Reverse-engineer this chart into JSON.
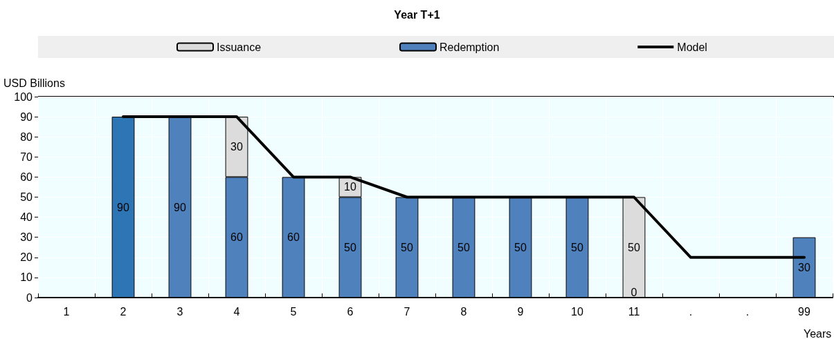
{
  "chart_data": {
    "type": "bar",
    "title": "Year T+1",
    "ylabel": "USD Billions",
    "xlabel": "Years",
    "categories": [
      "1",
      "2",
      "3",
      "4",
      "5",
      "6",
      "7",
      "8",
      "9",
      "10",
      "11",
      ".",
      ".",
      "99"
    ],
    "stacked": true,
    "annotations": [
      {
        "text": "0",
        "x": "11",
        "y": 0
      }
    ],
    "ylim": [
      0,
      100
    ],
    "yticks": [
      0,
      10,
      20,
      30,
      40,
      50,
      60,
      70,
      80,
      90,
      100
    ],
    "grid": true,
    "legend": "top",
    "series": [
      {
        "name": "Issuance",
        "color": "#dcdcdc",
        "values": [
          null,
          null,
          null,
          30,
          null,
          10,
          null,
          null,
          null,
          null,
          50,
          null,
          null,
          null
        ],
        "value_labels": [
          null,
          null,
          null,
          "30",
          null,
          "10",
          null,
          null,
          null,
          null,
          "50",
          null,
          null,
          null
        ]
      },
      {
        "name": "Redemption",
        "color": "#4f81bd",
        "colors": [
          "#4f81bd",
          "#2e75b6",
          "#4f81bd",
          "#4f81bd",
          "#4f81bd",
          "#4f81bd",
          "#4f81bd",
          "#4f81bd",
          "#4f81bd",
          "#4f81bd",
          "#4f81bd",
          "#4f81bd",
          "#4f81bd",
          "#4f81bd"
        ],
        "values": [
          null,
          90,
          90,
          60,
          60,
          50,
          50,
          50,
          50,
          50,
          0,
          null,
          null,
          30
        ],
        "value_labels": [
          null,
          "90",
          "90",
          "60",
          "60",
          "50",
          "50",
          "50",
          "50",
          "50",
          null,
          null,
          null,
          "30"
        ]
      },
      {
        "name": "Model",
        "type": "line",
        "color": "#000000",
        "marker": "none",
        "line_style": "solid",
        "values": [
          null,
          90,
          90,
          90,
          60,
          60,
          50,
          50,
          50,
          50,
          50,
          20,
          20,
          20
        ]
      }
    ]
  }
}
